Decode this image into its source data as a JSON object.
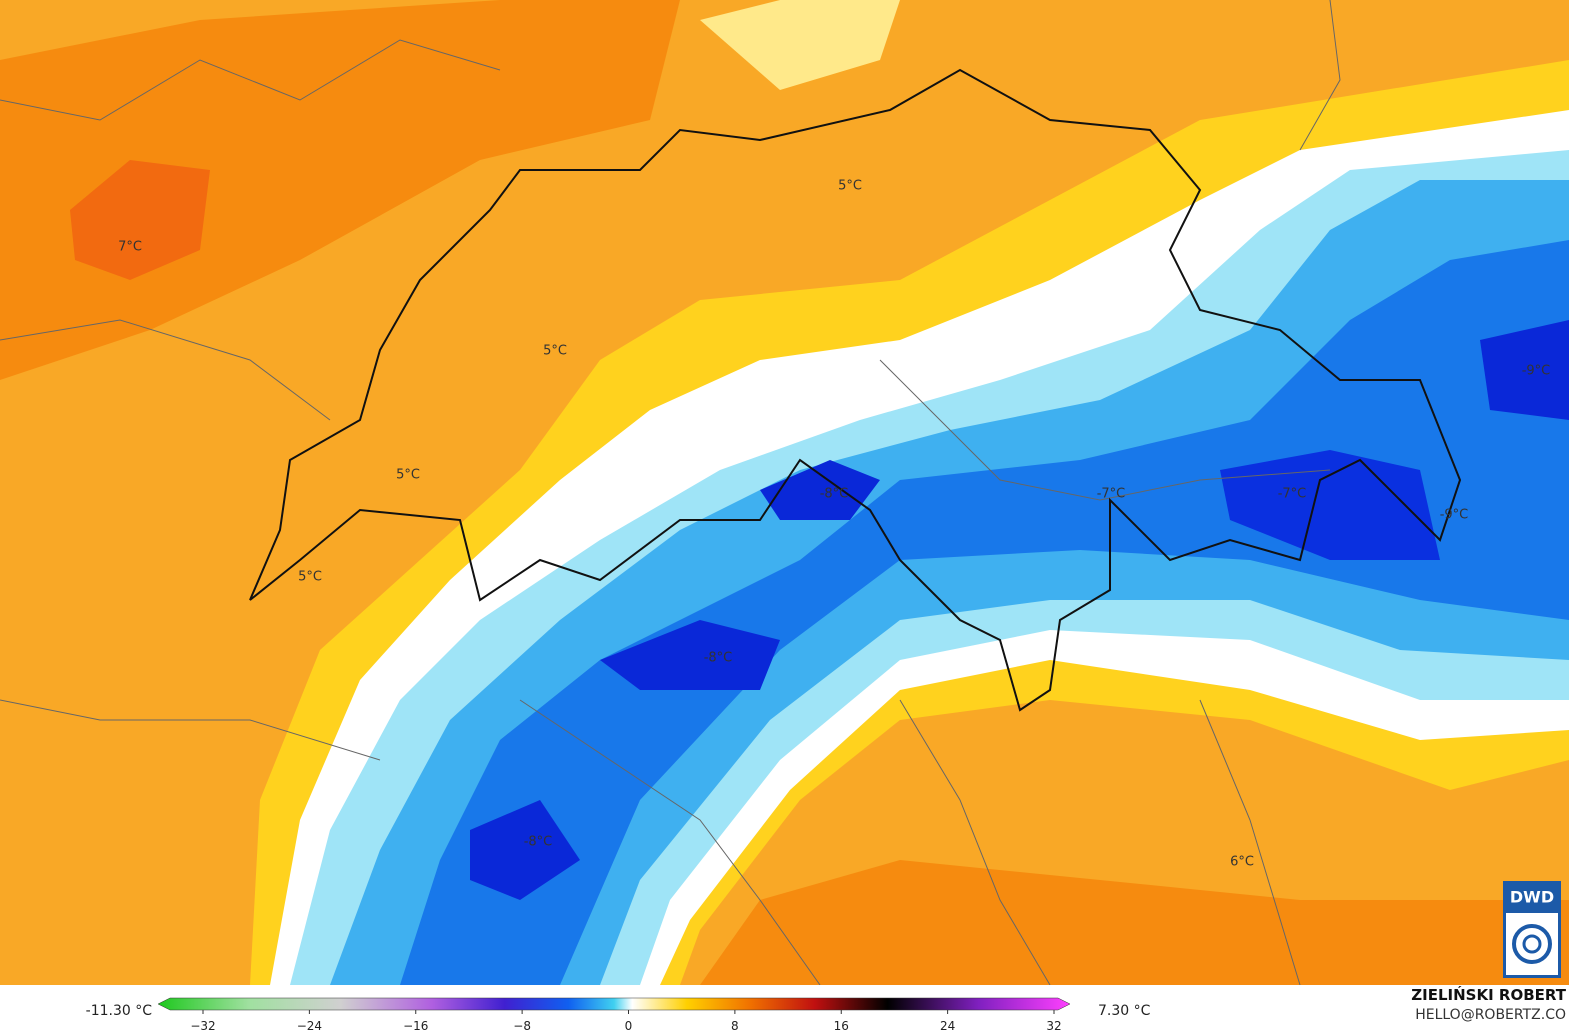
{
  "map_labels": [
    "7°C",
    "5°C",
    "5°C",
    "5°C",
    "5°C",
    "-8°C",
    "-7°C",
    "-7°C",
    "-9°C",
    "-9°C",
    "-8°C",
    "-8°C",
    "6°C"
  ],
  "colorbar": {
    "min_label": "-11.30 °C",
    "max_label": "7.30 °C",
    "ticks": [
      "−32",
      "−24",
      "−16",
      "−8",
      "0",
      "8",
      "16",
      "24",
      "32"
    ]
  },
  "author": "ZIELIŃSKI ROBERT",
  "contact": "HELLO@ROBERTZ.CO",
  "logo": "DWD"
}
